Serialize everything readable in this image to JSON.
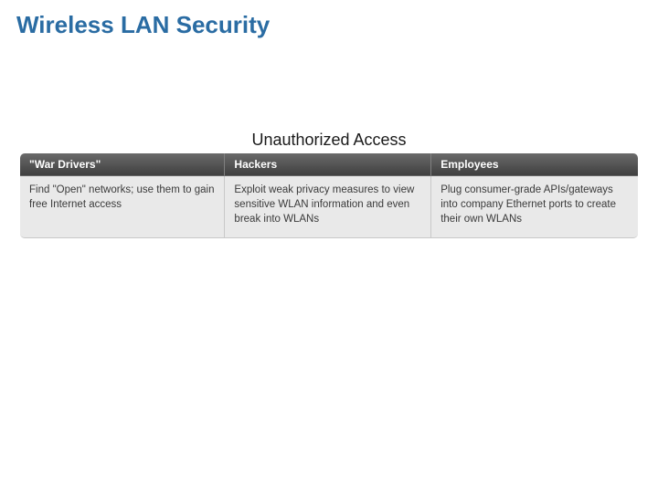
{
  "page": {
    "title": "Wireless LAN Security"
  },
  "table": {
    "title": "Unauthorized Access",
    "columns": [
      {
        "label": "\"War Drivers\""
      },
      {
        "label": "Hackers"
      },
      {
        "label": "Employees"
      }
    ],
    "rows": [
      {
        "cells": [
          "Find \"Open\" networks; use them to gain free Internet access",
          "Exploit weak privacy measures to view sensitive WLAN information and even break into WLANs",
          "Plug consumer-grade APIs/gateways into company Ethernet ports to create their own WLANs"
        ]
      }
    ],
    "styling": {
      "header_bg_gradient": [
        "#6a6a6a",
        "#555555",
        "#3f3f3f"
      ],
      "header_text_color": "#ffffff",
      "cell_bg": "#e9e9e9",
      "cell_text_color": "#3a3a3a",
      "border_color": "#c8c8c8",
      "header_font_size": 12,
      "cell_font_size": 11.5,
      "border_radius": 5
    }
  },
  "colors": {
    "title_color": "#2a6ca3",
    "background": "#ffffff"
  }
}
